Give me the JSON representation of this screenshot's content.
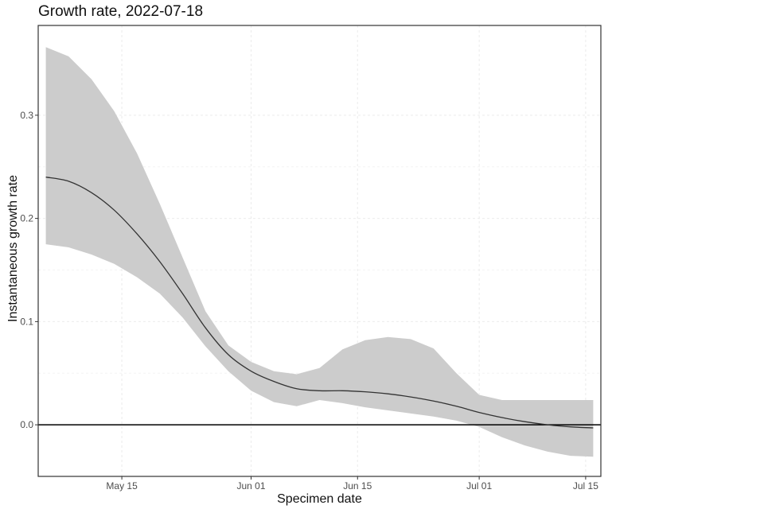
{
  "chart_data": {
    "type": "area",
    "title": "Growth rate, 2022-07-18",
    "xlabel": "Specimen date",
    "ylabel": "Instantaneous growth rate",
    "xlim": [
      "2022-05-04",
      "2022-07-17"
    ],
    "ylim": [
      -0.05,
      0.387
    ],
    "x_ticks": [
      {
        "date": "2022-05-15",
        "label": "May 15"
      },
      {
        "date": "2022-06-01",
        "label": "Jun 01"
      },
      {
        "date": "2022-06-15",
        "label": "Jun 15"
      },
      {
        "date": "2022-07-01",
        "label": "Jul 01"
      },
      {
        "date": "2022-07-15",
        "label": "Jul 15"
      }
    ],
    "y_ticks": [
      0.0,
      0.1,
      0.2,
      0.3
    ],
    "y_tick_labels": [
      "0.0",
      "0.1",
      "0.2",
      "0.3"
    ],
    "grid": true,
    "reference_line": 0,
    "colors": {
      "band": "#cccccc",
      "line": "#333333",
      "zero_line": "#000000",
      "grid": "#ebebeb"
    },
    "series": [
      {
        "x": [
          "2022-05-05",
          "2022-05-08",
          "2022-05-11",
          "2022-05-14",
          "2022-05-17",
          "2022-05-20",
          "2022-05-23",
          "2022-05-26",
          "2022-05-29",
          "2022-06-01",
          "2022-06-04",
          "2022-06-07",
          "2022-06-10",
          "2022-06-13",
          "2022-06-16",
          "2022-06-19",
          "2022-06-22",
          "2022-06-25",
          "2022-06-28",
          "2022-07-01",
          "2022-07-04",
          "2022-07-07",
          "2022-07-10",
          "2022-07-13",
          "2022-07-16"
        ],
        "y": [
          0.24,
          0.236,
          0.225,
          0.208,
          0.185,
          0.158,
          0.127,
          0.094,
          0.068,
          0.052,
          0.042,
          0.035,
          0.033,
          0.033,
          0.032,
          0.03,
          0.027,
          0.023,
          0.018,
          0.012,
          0.007,
          0.003,
          0.0,
          -0.002,
          -0.003
        ],
        "lower": [
          0.175,
          0.172,
          0.165,
          0.156,
          0.143,
          0.127,
          0.104,
          0.076,
          0.052,
          0.033,
          0.022,
          0.018,
          0.024,
          0.021,
          0.017,
          0.014,
          0.011,
          0.008,
          0.004,
          -0.002,
          -0.012,
          -0.02,
          -0.026,
          -0.03,
          -0.031
        ],
        "upper": [
          0.366,
          0.357,
          0.335,
          0.304,
          0.263,
          0.214,
          0.162,
          0.11,
          0.077,
          0.061,
          0.052,
          0.049,
          0.055,
          0.073,
          0.082,
          0.085,
          0.083,
          0.074,
          0.05,
          0.029,
          0.024,
          0.024,
          0.024,
          0.024,
          0.024
        ]
      }
    ]
  }
}
